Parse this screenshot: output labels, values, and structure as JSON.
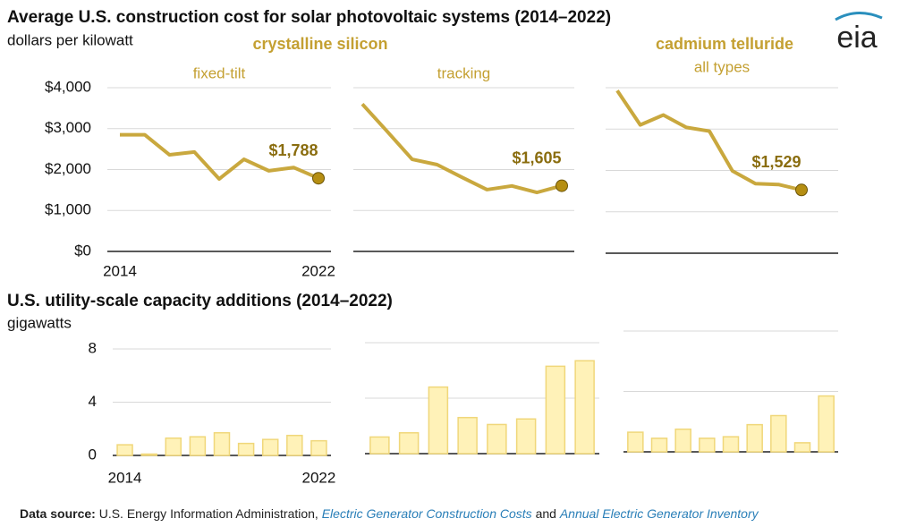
{
  "header": {
    "title": "Average U.S. construction cost for solar photovoltaic systems (2014–2022)",
    "subtitle": "dollars per kilowatt"
  },
  "logo": "eia",
  "group_labels": [
    "crystalline silicon",
    "cadmium telluride"
  ],
  "section2": {
    "title": "U.S. utility-scale capacity additions (2014–2022)",
    "subtitle": "gigawatts"
  },
  "source": {
    "label": "Data source:",
    "parts": [
      "U.S. Energy Information Administration, ",
      "Electric Generator Construction Costs",
      " and ",
      "Annual Electric Generator Inventory"
    ]
  },
  "chart_data": [
    {
      "type": "line",
      "title": "fixed-tilt",
      "color": "#c9a83e",
      "x": [
        2014,
        2015,
        2016,
        2017,
        2018,
        2019,
        2020,
        2021,
        2022
      ],
      "values": [
        2850,
        2850,
        2360,
        2430,
        1770,
        2250,
        1970,
        2050,
        1788
      ],
      "value_labels": [
        null,
        null,
        null,
        null,
        null,
        null,
        null,
        null,
        "$1,788"
      ],
      "xlim": [
        2014,
        2022
      ],
      "xticks": [
        2014,
        2022
      ],
      "ylim": [
        0,
        4000
      ],
      "yticks": [
        {
          "value": 0,
          "label": "$0"
        },
        {
          "value": 1000,
          "label": "$1,000"
        },
        {
          "value": 2000,
          "label": "$2,000"
        },
        {
          "value": 3000,
          "label": "$3,000"
        },
        {
          "value": 4000,
          "label": "$4,000"
        }
      ],
      "tick_labels": true,
      "grid": true
    },
    {
      "type": "line",
      "title": "tracking",
      "color": "#c9a83e",
      "x": [
        2014,
        2015,
        2016,
        2017,
        2018,
        2019,
        2020,
        2021,
        2022
      ],
      "values": [
        3600,
        2930,
        2250,
        2120,
        1810,
        1510,
        1600,
        1440,
        1605
      ],
      "value_labels": [
        null,
        null,
        null,
        null,
        null,
        null,
        null,
        null,
        "$1,605"
      ],
      "xlim": [
        2014,
        2022
      ],
      "ylim": [
        0,
        4000
      ],
      "yticks": [
        0,
        1000,
        2000,
        3000,
        4000
      ],
      "tick_labels": false,
      "grid": true
    },
    {
      "type": "line",
      "title": "all types",
      "color": "#c9a83e",
      "x": [
        2014,
        2015,
        2016,
        2017,
        2018,
        2019,
        2020,
        2021,
        2022
      ],
      "values": [
        3930,
        3100,
        3340,
        3040,
        2950,
        1990,
        1680,
        1660,
        1529
      ],
      "value_labels": [
        null,
        null,
        null,
        null,
        null,
        null,
        null,
        null,
        "$1,529"
      ],
      "xlim": [
        2014,
        2022
      ],
      "ylim": [
        0,
        4000
      ],
      "yticks": [
        0,
        1000,
        2000,
        3000,
        4000
      ],
      "tick_labels": false,
      "grid": true
    },
    {
      "type": "bar",
      "color": "#fff2b8",
      "categories": [
        "2014",
        null,
        null,
        null,
        null,
        null,
        null,
        null,
        "2022"
      ],
      "values": [
        0.8,
        0.1,
        1.3,
        1.4,
        1.7,
        0.9,
        1.2,
        1.5,
        1.1
      ],
      "ylim": [
        0,
        8
      ],
      "yticks": [
        0,
        4,
        8
      ],
      "tick_labels": true,
      "grid": true
    },
    {
      "type": "bar",
      "color": "#fff2b8",
      "categories": [
        null,
        null,
        null,
        null,
        null,
        null,
        null,
        null
      ],
      "values": [
        1.2,
        1.5,
        4.8,
        2.6,
        2.1,
        2.5,
        6.3,
        6.7
      ],
      "ylim": [
        0,
        8
      ],
      "yticks": [
        0,
        4,
        8
      ],
      "tick_labels": false,
      "grid": true
    },
    {
      "type": "bar",
      "color": "#fff2b8",
      "categories": [
        null,
        null,
        null,
        null,
        null,
        null,
        null,
        null,
        null
      ],
      "values": [
        1.3,
        0.9,
        1.5,
        0.9,
        1.0,
        1.8,
        2.4,
        0.6,
        3.7
      ],
      "ylim": [
        0,
        8
      ],
      "yticks": [
        0,
        4,
        8
      ],
      "tick_labels": false,
      "grid": true
    }
  ]
}
